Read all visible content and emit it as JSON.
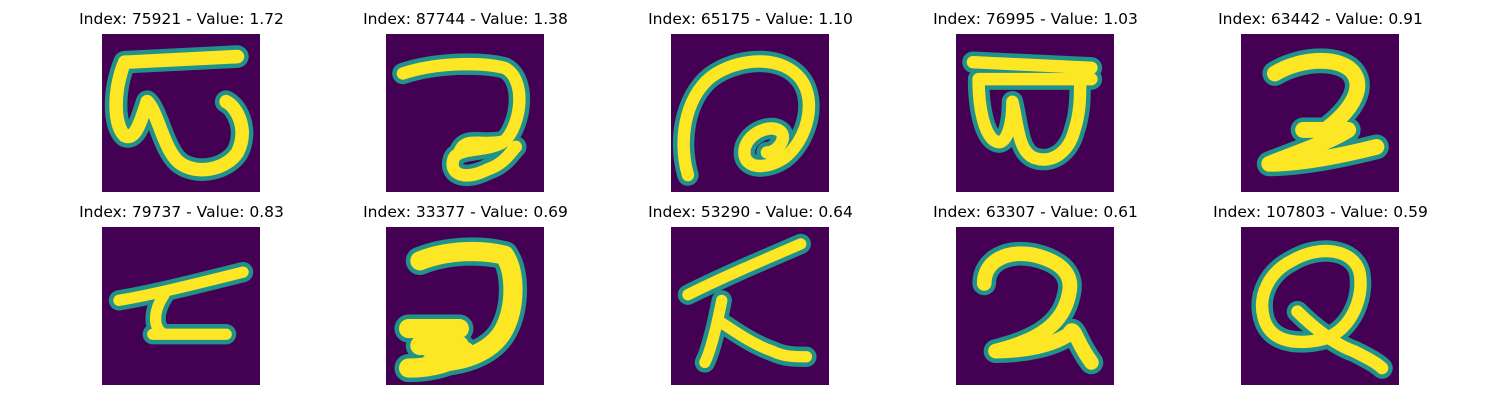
{
  "colors": {
    "background": "#440154",
    "mid": "#21918c",
    "stroke": "#fde725",
    "title": "#000000"
  },
  "panels": [
    {
      "title": "Index: 75921 - Value: 1.72"
    },
    {
      "title": "Index: 87744 - Value: 1.38"
    },
    {
      "title": "Index: 65175 - Value: 1.10"
    },
    {
      "title": "Index: 76995 - Value: 1.03"
    },
    {
      "title": "Index: 63442 - Value: 0.91"
    },
    {
      "title": "Index: 79737 - Value: 0.83"
    },
    {
      "title": "Index: 33377 - Value: 0.69"
    },
    {
      "title": "Index: 53290 - Value: 0.64"
    },
    {
      "title": "Index: 63307 - Value: 0.61"
    },
    {
      "title": "Index: 107803 - Value: 0.59"
    }
  ]
}
